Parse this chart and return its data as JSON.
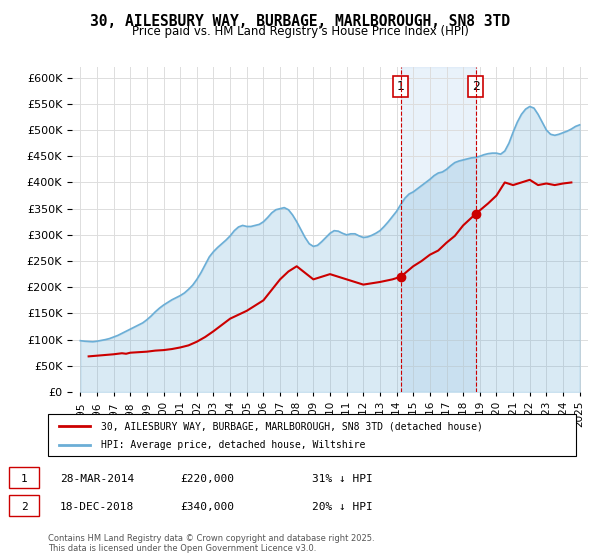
{
  "title": "30, AILESBURY WAY, BURBAGE, MARLBOROUGH, SN8 3TD",
  "subtitle": "Price paid vs. HM Land Registry's House Price Index (HPI)",
  "hpi_color": "#6baed6",
  "price_color": "#cc0000",
  "background_color": "#ffffff",
  "grid_color": "#dddddd",
  "ylim": [
    0,
    620000
  ],
  "yticks": [
    0,
    50000,
    100000,
    150000,
    200000,
    250000,
    300000,
    350000,
    400000,
    450000,
    500000,
    550000,
    600000
  ],
  "xlabel_start": 1995,
  "xlabel_end": 2025,
  "transaction1": {
    "date": "28-MAR-2014",
    "price": 220000,
    "label": "1",
    "hpi_pct": "31% ↓ HPI"
  },
  "transaction2": {
    "date": "18-DEC-2018",
    "price": 340000,
    "label": "2",
    "hpi_pct": "20% ↓ HPI"
  },
  "legend_line1": "30, AILESBURY WAY, BURBAGE, MARLBOROUGH, SN8 3TD (detached house)",
  "legend_line2": "HPI: Average price, detached house, Wiltshire",
  "footer": "Contains HM Land Registry data © Crown copyright and database right 2025.\nThis data is licensed under the Open Government Licence v3.0.",
  "hpi_data_x": [
    1995.0,
    1995.25,
    1995.5,
    1995.75,
    1996.0,
    1996.25,
    1996.5,
    1996.75,
    1997.0,
    1997.25,
    1997.5,
    1997.75,
    1998.0,
    1998.25,
    1998.5,
    1998.75,
    1999.0,
    1999.25,
    1999.5,
    1999.75,
    2000.0,
    2000.25,
    2000.5,
    2000.75,
    2001.0,
    2001.25,
    2001.5,
    2001.75,
    2002.0,
    2002.25,
    2002.5,
    2002.75,
    2003.0,
    2003.25,
    2003.5,
    2003.75,
    2004.0,
    2004.25,
    2004.5,
    2004.75,
    2005.0,
    2005.25,
    2005.5,
    2005.75,
    2006.0,
    2006.25,
    2006.5,
    2006.75,
    2007.0,
    2007.25,
    2007.5,
    2007.75,
    2008.0,
    2008.25,
    2008.5,
    2008.75,
    2009.0,
    2009.25,
    2009.5,
    2009.75,
    2010.0,
    2010.25,
    2010.5,
    2010.75,
    2011.0,
    2011.25,
    2011.5,
    2011.75,
    2012.0,
    2012.25,
    2012.5,
    2012.75,
    2013.0,
    2013.25,
    2013.5,
    2013.75,
    2014.0,
    2014.25,
    2014.5,
    2014.75,
    2015.0,
    2015.25,
    2015.5,
    2015.75,
    2016.0,
    2016.25,
    2016.5,
    2016.75,
    2017.0,
    2017.25,
    2017.5,
    2017.75,
    2018.0,
    2018.25,
    2018.5,
    2018.75,
    2019.0,
    2019.25,
    2019.5,
    2019.75,
    2020.0,
    2020.25,
    2020.5,
    2020.75,
    2021.0,
    2021.25,
    2021.5,
    2021.75,
    2022.0,
    2022.25,
    2022.5,
    2022.75,
    2023.0,
    2023.25,
    2023.5,
    2023.75,
    2024.0,
    2024.25,
    2024.5,
    2024.75,
    2025.0
  ],
  "hpi_data_y": [
    98000,
    97000,
    96500,
    96000,
    97000,
    98500,
    100000,
    102000,
    105000,
    108000,
    112000,
    116000,
    120000,
    124000,
    128000,
    132000,
    138000,
    145000,
    153000,
    160000,
    166000,
    171000,
    176000,
    180000,
    184000,
    189000,
    196000,
    204000,
    215000,
    228000,
    243000,
    258000,
    268000,
    276000,
    283000,
    290000,
    298000,
    308000,
    315000,
    318000,
    316000,
    316000,
    318000,
    320000,
    325000,
    333000,
    342000,
    348000,
    350000,
    352000,
    348000,
    338000,
    325000,
    310000,
    295000,
    283000,
    278000,
    280000,
    287000,
    295000,
    303000,
    308000,
    307000,
    303000,
    300000,
    302000,
    302000,
    298000,
    295000,
    296000,
    299000,
    303000,
    308000,
    316000,
    325000,
    335000,
    345000,
    358000,
    370000,
    378000,
    382000,
    388000,
    394000,
    400000,
    406000,
    413000,
    418000,
    420000,
    425000,
    432000,
    438000,
    441000,
    443000,
    445000,
    447000,
    448000,
    450000,
    453000,
    455000,
    456000,
    456000,
    454000,
    460000,
    475000,
    496000,
    515000,
    530000,
    540000,
    545000,
    542000,
    530000,
    515000,
    500000,
    492000,
    490000,
    492000,
    495000,
    498000,
    502000,
    507000,
    510000
  ],
  "price_data_x": [
    1995.5,
    1997.0,
    1997.5,
    1997.75,
    1998.0,
    1998.5,
    1999.0,
    1999.5,
    2000.0,
    2000.25,
    2000.5,
    2001.0,
    2001.5,
    2002.0,
    2002.5,
    2003.0,
    2003.5,
    2004.0,
    2005.0,
    2005.5,
    2006.0,
    2006.5,
    2007.0,
    2007.5,
    2008.0,
    2009.0,
    2010.0,
    2011.0,
    2012.0,
    2013.0,
    2013.75,
    2014.25,
    2015.0,
    2015.5,
    2016.0,
    2016.5,
    2017.0,
    2017.5,
    2018.0,
    2018.75,
    2019.5,
    2020.0,
    2020.5,
    2021.0,
    2022.0,
    2022.5,
    2023.0,
    2023.5,
    2024.0,
    2024.5
  ],
  "price_data_y": [
    68000,
    72000,
    74000,
    73000,
    75000,
    76000,
    77000,
    79000,
    80000,
    81000,
    82000,
    85000,
    89000,
    96000,
    105000,
    116000,
    128000,
    140000,
    155000,
    165000,
    175000,
    195000,
    215000,
    230000,
    240000,
    215000,
    225000,
    215000,
    205000,
    210000,
    215000,
    220000,
    240000,
    250000,
    262000,
    270000,
    285000,
    298000,
    318000,
    340000,
    360000,
    375000,
    400000,
    395000,
    405000,
    395000,
    398000,
    395000,
    398000,
    400000
  ]
}
